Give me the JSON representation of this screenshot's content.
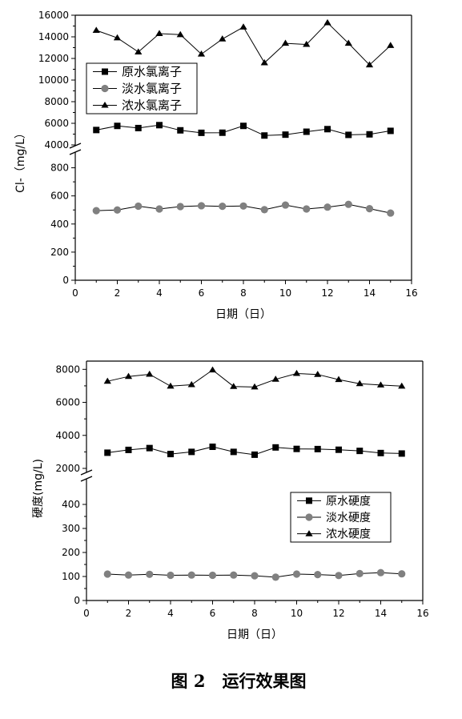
{
  "chart_data": [
    {
      "type": "line",
      "x": [
        1,
        2,
        3,
        4,
        5,
        6,
        7,
        8,
        9,
        10,
        11,
        12,
        13,
        14,
        15
      ],
      "series": [
        {
          "name": "原水氯离子",
          "marker": "square",
          "values": [
            5380,
            5760,
            5560,
            5830,
            5350,
            5120,
            5130,
            5760,
            4870,
            4950,
            5220,
            5460,
            4930,
            4980,
            5300
          ]
        },
        {
          "name": "淡水氯离子",
          "marker": "circle",
          "color": "#808080",
          "values": [
            495,
            500,
            527,
            507,
            524,
            530,
            526,
            528,
            502,
            535,
            507,
            520,
            540,
            509,
            478
          ]
        },
        {
          "name": "浓水氯离子",
          "marker": "triangle",
          "values": [
            14600,
            13900,
            12600,
            14300,
            14200,
            12400,
            13800,
            14900,
            11600,
            13400,
            13300,
            15300,
            13400,
            11400,
            13200
          ]
        }
      ],
      "xlabel": "日期（日）",
      "ylabel": "Cl-（mg/L）",
      "xlim": [
        0,
        16
      ],
      "xticks": [
        "0",
        "2",
        "4",
        "6",
        "8",
        "10",
        "12",
        "14",
        "16"
      ],
      "lower_axis": {
        "range": [
          0,
          900
        ],
        "ticks": [
          "0",
          "200",
          "400",
          "600",
          "800"
        ]
      },
      "upper_axis": {
        "range": [
          4000,
          16000
        ],
        "ticks": [
          "4000",
          "6000",
          "8000",
          "10000",
          "12000",
          "14000",
          "16000"
        ]
      },
      "axis_break": true,
      "legend": "top-left"
    },
    {
      "type": "line",
      "x": [
        1,
        2,
        3,
        4,
        5,
        6,
        7,
        8,
        9,
        10,
        11,
        12,
        13,
        14,
        15
      ],
      "series": [
        {
          "name": "原水硬度",
          "marker": "square",
          "values": [
            2950,
            3120,
            3230,
            2870,
            3000,
            3310,
            3000,
            2830,
            3270,
            3180,
            3170,
            3130,
            3060,
            2930,
            2900
          ]
        },
        {
          "name": "淡水硬度",
          "marker": "circle",
          "color": "#808080",
          "values": [
            110,
            106,
            109,
            105,
            106,
            105,
            106,
            103,
            97,
            110,
            108,
            104,
            112,
            116,
            111
          ]
        },
        {
          "name": "浓水硬度",
          "marker": "triangle",
          "values": [
            7280,
            7570,
            7700,
            6980,
            7070,
            7960,
            6960,
            6930,
            7400,
            7750,
            7690,
            7380,
            7130,
            7050,
            6980
          ]
        }
      ],
      "xlabel": "日期（日）",
      "ylabel": "硬度(mg/L)",
      "xlim": [
        0,
        16
      ],
      "xticks": [
        "0",
        "2",
        "4",
        "6",
        "8",
        "10",
        "12",
        "14",
        "16"
      ],
      "lower_axis": {
        "range": [
          0,
          490
        ],
        "ticks": [
          "0",
          "100",
          "200",
          "300",
          "400"
        ]
      },
      "upper_axis": {
        "range": [
          2000,
          8500
        ],
        "ticks": [
          "2000",
          "4000",
          "6000",
          "8000"
        ]
      },
      "axis_break": true,
      "legend": "right"
    }
  ],
  "caption": "图 2　运行效果图"
}
